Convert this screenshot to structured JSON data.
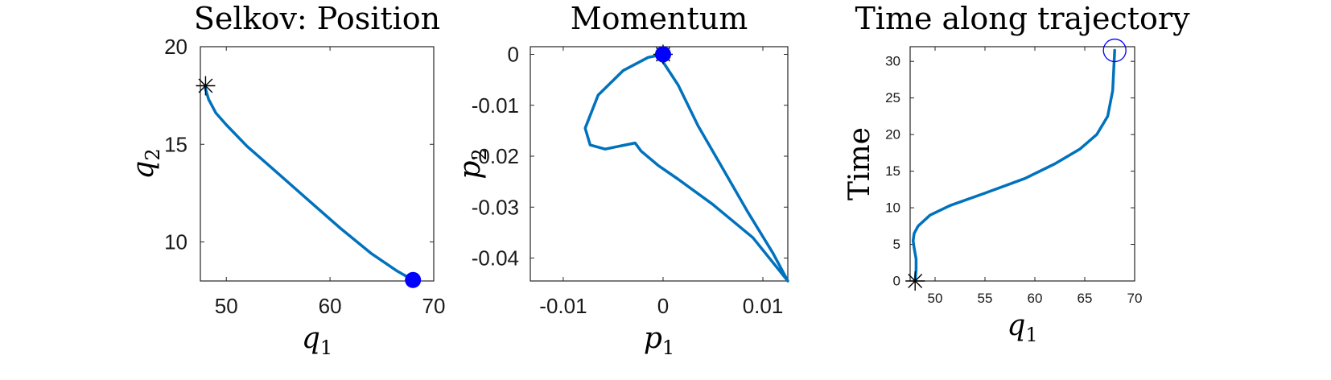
{
  "chart_data": [
    {
      "type": "line",
      "title": "Selkov: Position",
      "xlabel": "q",
      "xlabel_sub": "1",
      "ylabel": "q",
      "ylabel_sub": "2",
      "xlim": [
        47.5,
        70
      ],
      "ylim": [
        8,
        20
      ],
      "xticks": [
        50,
        60,
        70
      ],
      "yticks": [
        10,
        15,
        20
      ],
      "series": [
        {
          "x": [
            47.9,
            48.3,
            49.0,
            50.0,
            52.0,
            55.0,
            58.0,
            61.0,
            64.0,
            66.5,
            68.0
          ],
          "y": [
            18.0,
            17.3,
            16.6,
            16.0,
            14.9,
            13.5,
            12.1,
            10.7,
            9.4,
            8.5,
            8.05
          ]
        }
      ],
      "markers": [
        {
          "kind": "asterisk",
          "x": 48.0,
          "y": 18.0,
          "color": "#000000"
        },
        {
          "kind": "filled-circle",
          "x": 68.0,
          "y": 8.05,
          "color": "#0000FF"
        }
      ]
    },
    {
      "type": "line",
      "title": "Momentum",
      "xlabel": "p",
      "xlabel_sub": "1",
      "ylabel": "p",
      "ylabel_sub": "2",
      "xlim": [
        -0.0133,
        0.0125
      ],
      "ylim": [
        -0.0445,
        0.0015
      ],
      "xticks": [
        -0.01,
        0,
        0.01
      ],
      "xticklabels": [
        "-0.01",
        "0",
        "0.01"
      ],
      "yticks": [
        0,
        -0.01,
        -0.02,
        -0.03,
        -0.04
      ],
      "yticklabels": [
        "0",
        "-0.01",
        "-0.02",
        "-0.03",
        "-0.04"
      ],
      "series": [
        {
          "x": [
            0.0,
            -0.0015,
            -0.004,
            -0.0065,
            -0.0078,
            -0.0073,
            -0.0058,
            -0.0038,
            -0.0028,
            -0.0022,
            -0.0005,
            0.0015,
            0.005,
            0.009,
            0.0125,
            0.011,
            0.0085,
            0.006,
            0.0035,
            0.0015,
            0.0,
            0.0
          ],
          "y": [
            0.0,
            -0.0006,
            -0.0032,
            -0.008,
            -0.0145,
            -0.0178,
            -0.0186,
            -0.0178,
            -0.0174,
            -0.019,
            -0.0218,
            -0.0245,
            -0.0295,
            -0.036,
            -0.0445,
            -0.039,
            -0.031,
            -0.0225,
            -0.014,
            -0.006,
            -0.0015,
            0.0
          ]
        }
      ],
      "markers": [
        {
          "kind": "asterisk",
          "x": 0.0,
          "y": 0.0,
          "color": "#000000"
        },
        {
          "kind": "filled-circle",
          "x": 0.0,
          "y": 0.0,
          "color": "#0000FF"
        }
      ]
    },
    {
      "type": "line",
      "title": "Time along trajectory",
      "xlabel": "q",
      "xlabel_sub": "1",
      "ylabel": "Time",
      "xlim": [
        47.5,
        70
      ],
      "ylim": [
        0,
        32
      ],
      "xticks": [
        50,
        55,
        60,
        65,
        70
      ],
      "yticks": [
        0,
        5,
        10,
        15,
        20,
        25,
        30
      ],
      "series": [
        {
          "x": [
            48.0,
            48.1,
            48.1,
            47.9,
            47.8,
            47.9,
            48.3,
            49.5,
            51.5,
            55.0,
            59.0,
            62.0,
            64.5,
            66.2,
            67.3,
            67.8,
            68.0
          ],
          "y": [
            0.0,
            1.5,
            3.0,
            4.5,
            5.5,
            6.5,
            7.5,
            9.0,
            10.3,
            12.0,
            14.0,
            16.0,
            18.0,
            20.0,
            22.5,
            26.0,
            31.5
          ]
        }
      ],
      "markers": [
        {
          "kind": "asterisk",
          "x": 48.0,
          "y": 0.0,
          "color": "#000000"
        },
        {
          "kind": "open-circle",
          "x": 68.0,
          "y": 31.5,
          "color": "#0000FF"
        }
      ]
    }
  ]
}
